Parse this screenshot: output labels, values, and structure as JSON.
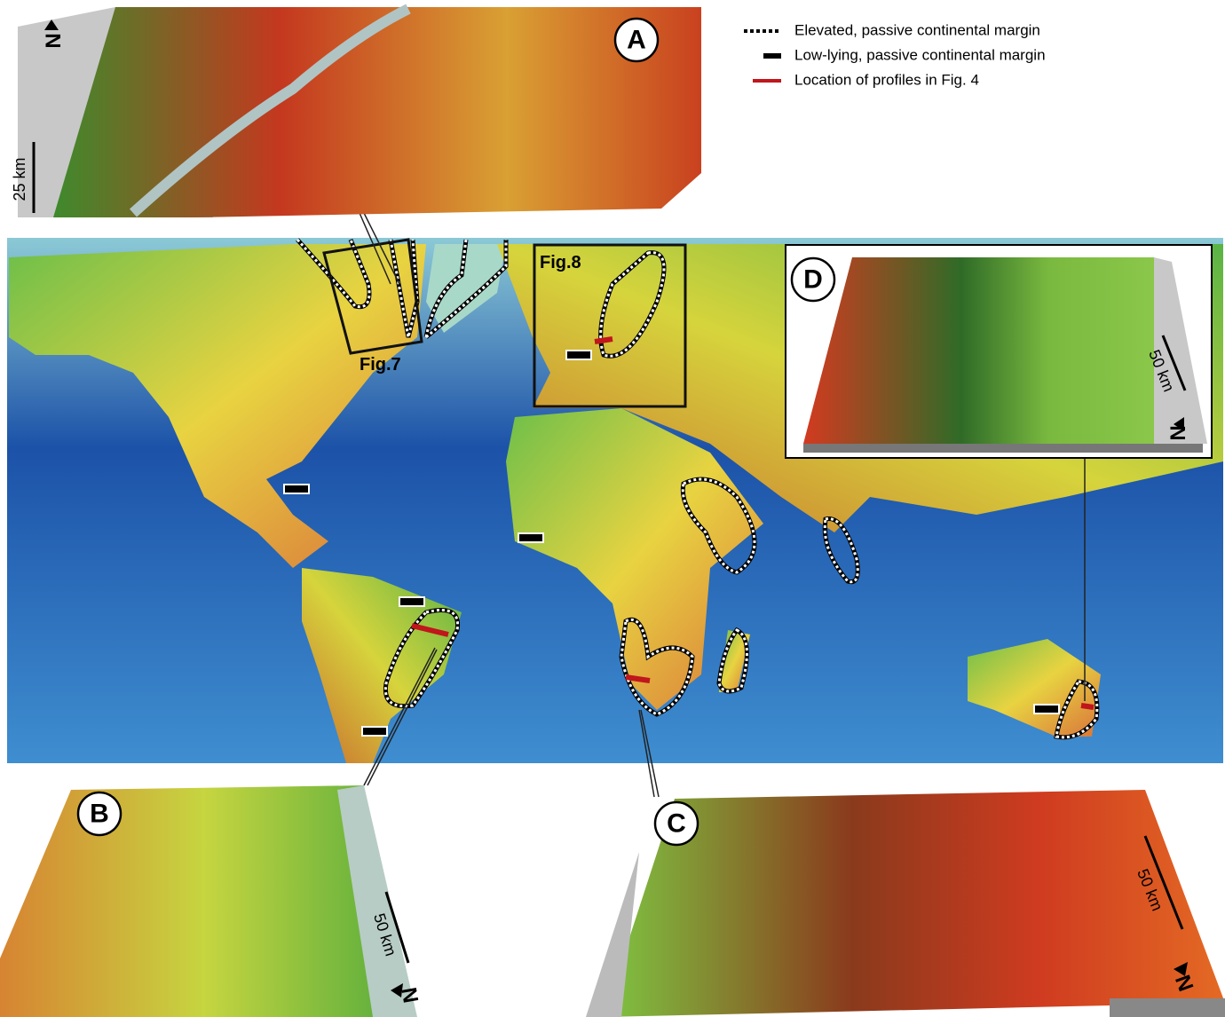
{
  "legend": {
    "items": [
      {
        "label": "Elevated, passive continental margin"
      },
      {
        "label": "Low-lying, passive continental margin"
      },
      {
        "label": "Location of profiles in Fig. 4"
      }
    ]
  },
  "map": {
    "boxes": [
      {
        "label": "Fig.7"
      },
      {
        "label": "Fig.8"
      }
    ]
  },
  "panels": [
    {
      "label": "A",
      "scale": "25 km",
      "north": "N"
    },
    {
      "label": "B",
      "scale": "50 km",
      "north": "N"
    },
    {
      "label": "C",
      "scale": "50 km",
      "north": "N"
    },
    {
      "label": "D",
      "scale": "50 km",
      "north": "N"
    }
  ]
}
